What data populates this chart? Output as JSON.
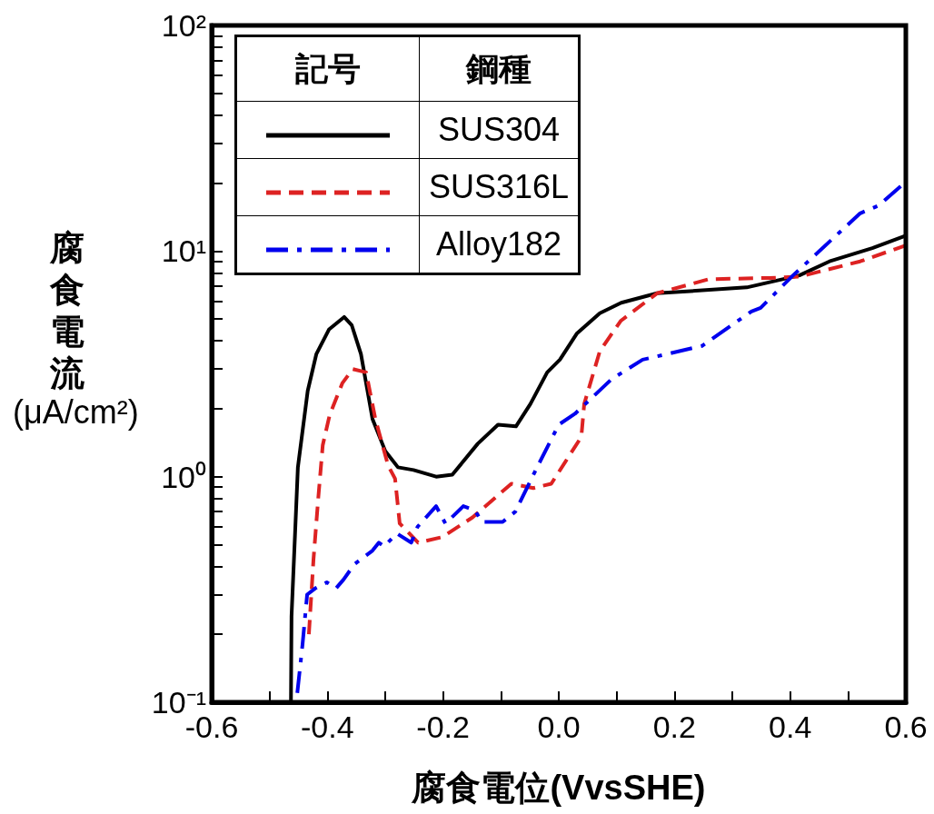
{
  "chart_data": {
    "type": "line",
    "xlabel": "腐食電位(VvsSHE)",
    "ylabel": "腐食電流(μA/cm²)",
    "legend_title": "鋼種",
    "annotations": [
      "記号"
    ],
    "legend": "top left",
    "grid": false,
    "marker": "none",
    "log": "y",
    "xlim": [
      -0.6,
      0.6
    ],
    "xticks": [
      -0.6,
      {
        "value": -0.5,
        "label": null
      },
      -0.4,
      {
        "value": -0.3,
        "label": null
      },
      -0.2,
      {
        "value": -0.1,
        "label": null
      },
      {
        "value": 0,
        "label": "0.0"
      },
      {
        "value": 0.1,
        "label": null
      },
      0.2,
      {
        "value": 0.3,
        "label": null
      },
      0.4,
      {
        "value": 0.5,
        "label": null
      },
      0.6
    ],
    "ylim": [
      0.1,
      100
    ],
    "yticks": [
      {
        "value": 0.1,
        "label": "10⁻¹"
      },
      {
        "value": 0.2,
        "label": null
      },
      {
        "value": 0.3,
        "label": null
      },
      {
        "value": 0.4,
        "label": null
      },
      {
        "value": 0.5,
        "label": null
      },
      {
        "value": 0.6,
        "label": null
      },
      {
        "value": 0.7,
        "label": null
      },
      {
        "value": 0.8,
        "label": null
      },
      {
        "value": 0.9,
        "label": null
      },
      {
        "value": 1,
        "label": "10⁰"
      },
      {
        "value": 2,
        "label": null
      },
      {
        "value": 3,
        "label": null
      },
      {
        "value": 4,
        "label": null
      },
      {
        "value": 5,
        "label": null
      },
      {
        "value": 6,
        "label": null
      },
      {
        "value": 7,
        "label": null
      },
      {
        "value": 8,
        "label": null
      },
      {
        "value": 9,
        "label": null
      },
      {
        "value": 10,
        "label": "10¹"
      },
      {
        "value": 20,
        "label": null
      },
      {
        "value": 30,
        "label": null
      },
      {
        "value": 40,
        "label": null
      },
      {
        "value": 50,
        "label": null
      },
      {
        "value": 60,
        "label": null
      },
      {
        "value": 70,
        "label": null
      },
      {
        "value": 80,
        "label": null
      },
      {
        "value": 90,
        "label": null
      },
      {
        "value": 100,
        "label": "10²"
      }
    ],
    "series": [
      {
        "name": "SUS304",
        "color": "#000000",
        "line_style": "solid",
        "x": [
          -0.463,
          -0.462,
          -0.451,
          -0.434,
          -0.419,
          -0.397,
          -0.371,
          -0.358,
          -0.342,
          -0.322,
          -0.3,
          -0.278,
          -0.251,
          -0.212,
          -0.184,
          -0.14,
          -0.105,
          -0.074,
          -0.049,
          -0.02,
          0.002,
          0.031,
          0.071,
          0.108,
          0.17,
          0.325,
          0.416,
          0.468,
          0.542,
          0.6
        ],
        "values": [
          0.1,
          0.24,
          1.1,
          2.4,
          3.5,
          4.5,
          5.1,
          4.7,
          3.5,
          1.8,
          1.3,
          1.1,
          1.07,
          1.0,
          1.02,
          1.4,
          1.7,
          1.67,
          2.1,
          2.9,
          3.3,
          4.3,
          5.3,
          5.9,
          6.5,
          6.9,
          7.8,
          9.0,
          10.3,
          11.7
        ]
      },
      {
        "name": "SUS316L",
        "color": "#dd2222",
        "line_style": "dashed",
        "x": [
          -0.432,
          -0.424,
          -0.416,
          -0.408,
          -0.396,
          -0.374,
          -0.356,
          -0.333,
          -0.317,
          -0.295,
          -0.283,
          -0.275,
          -0.243,
          -0.201,
          -0.149,
          -0.082,
          -0.044,
          -0.013,
          0.039,
          0.044,
          0.071,
          0.107,
          0.17,
          0.259,
          0.364,
          0.416,
          0.521,
          0.6
        ],
        "values": [
          0.2,
          0.43,
          0.79,
          1.38,
          1.88,
          2.6,
          3.0,
          2.9,
          1.8,
          1.12,
          0.98,
          0.62,
          0.51,
          0.54,
          0.66,
          0.93,
          0.89,
          0.93,
          1.5,
          2.1,
          3.6,
          4.9,
          6.5,
          7.5,
          7.6,
          7.7,
          9.0,
          10.6
        ]
      },
      {
        "name": "Alloy182",
        "color": "#0000ee",
        "line_style": "dashdot",
        "x": [
          -0.452,
          -0.443,
          -0.435,
          -0.421,
          -0.401,
          -0.385,
          -0.372,
          -0.353,
          -0.322,
          -0.311,
          -0.302,
          -0.28,
          -0.255,
          -0.244,
          -0.212,
          -0.196,
          -0.185,
          -0.165,
          -0.145,
          -0.133,
          -0.097,
          -0.075,
          -0.039,
          0.0,
          0.028,
          0.091,
          0.145,
          0.248,
          0.333,
          0.349,
          0.405,
          0.521,
          0.553,
          0.6
        ],
        "values": [
          0.11,
          0.18,
          0.3,
          0.32,
          0.34,
          0.32,
          0.35,
          0.41,
          0.47,
          0.51,
          0.49,
          0.56,
          0.51,
          0.6,
          0.74,
          0.62,
          0.66,
          0.74,
          0.71,
          0.63,
          0.63,
          0.7,
          1.08,
          1.7,
          1.9,
          2.7,
          3.3,
          3.8,
          5.4,
          5.6,
          7.8,
          14.7,
          15.9,
          20.3
        ]
      }
    ]
  }
}
